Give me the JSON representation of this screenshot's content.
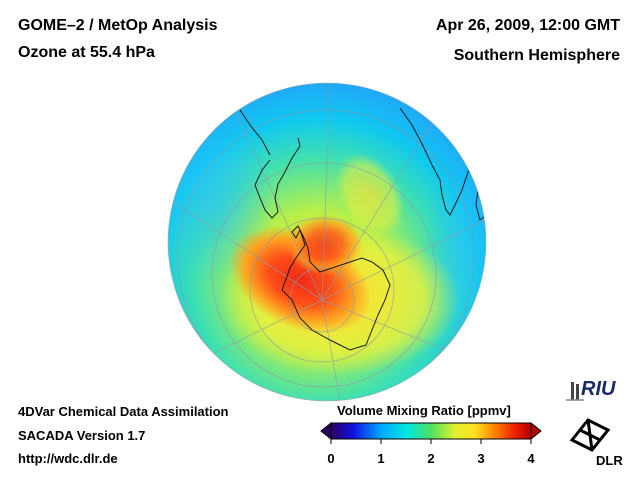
{
  "header": {
    "title": "GOME–2 / MetOp Analysis",
    "subtitle": "Ozone at 55.4 hPa",
    "datetime": "Apr 26, 2009, 12:00 GMT",
    "hemisphere": "Southern Hemisphere"
  },
  "footer": {
    "line1": "4DVar Chemical Data Assimilation",
    "line2": "SACADA Version 1.7",
    "line3": "http://wdc.dlr.de"
  },
  "colorbar": {
    "title": "Volume Mixing Ratio [ppmv]",
    "ticks": [
      "0",
      "1",
      "2",
      "3",
      "4"
    ],
    "min": 0,
    "max": 4,
    "colors": [
      "#2a0060",
      "#0000e0",
      "#00a0ff",
      "#00e0e0",
      "#40e080",
      "#c0f040",
      "#ffff20",
      "#ffa000",
      "#ff2000",
      "#c00000"
    ]
  },
  "logos": {
    "riu": "RIU",
    "dlr": "DLR"
  },
  "map": {
    "projection": "orthographic south polar",
    "field": "ozone volume mixing ratio"
  }
}
